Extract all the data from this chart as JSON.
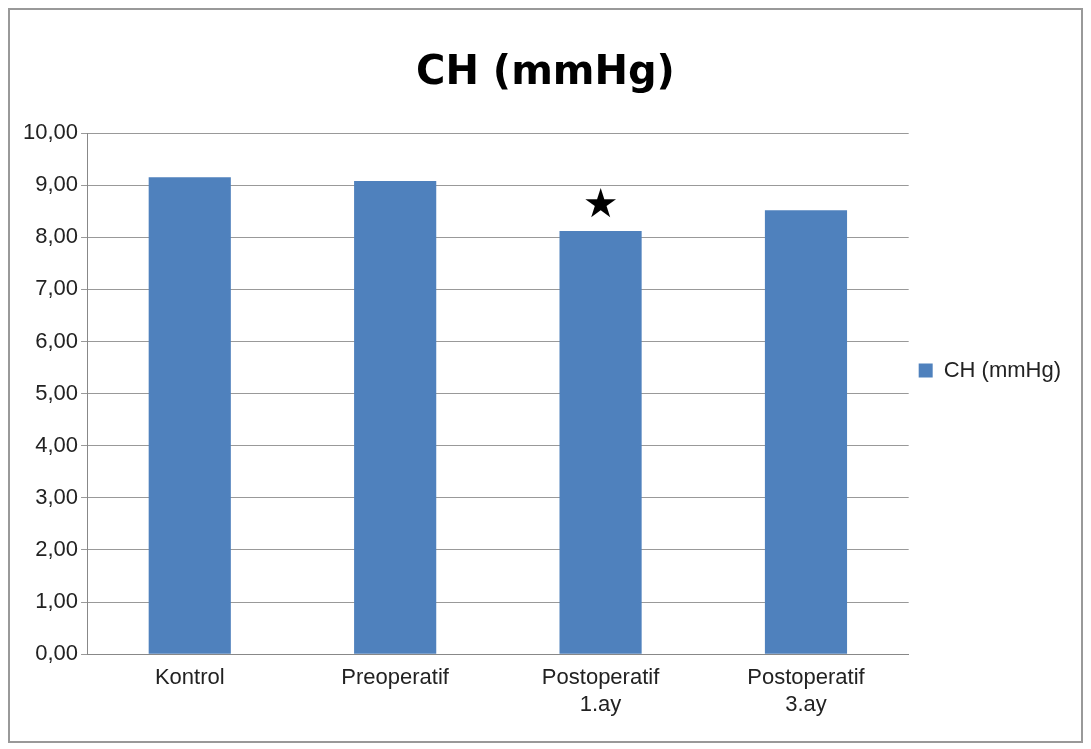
{
  "chart_data": {
    "type": "bar",
    "title": "CH (mmHg)",
    "categories": [
      "Kontrol",
      "Preoperatif",
      "Postoperatif 1.ay",
      "Postoperatif 3.ay"
    ],
    "series": [
      {
        "name": "CH (mmHg)",
        "color": "#4f81bd",
        "values": [
          9.15,
          9.08,
          8.12,
          8.52
        ]
      }
    ],
    "ylim": [
      0,
      10
    ],
    "yticks": [
      {
        "value": 0,
        "label": "0,00"
      },
      {
        "value": 1,
        "label": "1,00"
      },
      {
        "value": 2,
        "label": "2,00"
      },
      {
        "value": 3,
        "label": "3,00"
      },
      {
        "value": 4,
        "label": "4,00"
      },
      {
        "value": 5,
        "label": "5,00"
      },
      {
        "value": 6,
        "label": "6,00"
      },
      {
        "value": 7,
        "label": "7,00"
      },
      {
        "value": 8,
        "label": "8,00"
      },
      {
        "value": 9,
        "label": "9,00"
      },
      {
        "value": 10,
        "label": "10,00"
      }
    ],
    "grid": "y",
    "legend": "right",
    "annotations": [
      {
        "text": "★",
        "x": "Postoperatif 1.ay",
        "y": 8.12
      }
    ]
  }
}
